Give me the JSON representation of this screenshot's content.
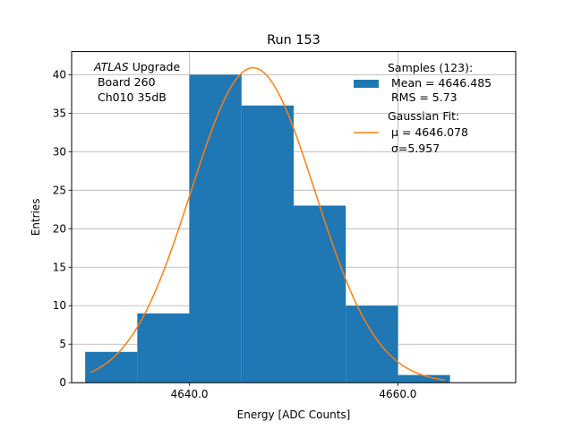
{
  "chart_data": {
    "type": "bar",
    "title": "Run 153",
    "xlabel": "Energy [ADC Counts]",
    "ylabel": "Entries",
    "xlim": [
      2.87,
      7.13
    ],
    "ylim": [
      0,
      43
    ],
    "grid": true,
    "bins": [
      {
        "left": 3,
        "right": 3.5,
        "value": 4
      },
      {
        "left": 3.5,
        "right": 4,
        "value": 9
      },
      {
        "left": 4,
        "right": 4.5,
        "value": 40
      },
      {
        "left": 4.5,
        "right": 5,
        "value": 36
      },
      {
        "left": 5,
        "right": 5.5,
        "value": 23
      },
      {
        "left": 5.5,
        "right": 6,
        "value": 10
      },
      {
        "left": 6,
        "right": 6.5,
        "value": 1
      }
    ],
    "x_ticks": [
      {
        "pos": 4,
        "label": "4640.0"
      },
      {
        "pos": 6,
        "label": "4660.0"
      }
    ],
    "y_ticks": [
      0,
      5,
      10,
      15,
      20,
      25,
      30,
      35,
      40
    ],
    "fit": {
      "amplitude": 40.9,
      "center": 4.61,
      "sigma": 0.5957,
      "x_from": 3.05,
      "x_to": 6.45
    },
    "colors": {
      "bars": "#1f77b4",
      "fit_line": "#ff7f0e",
      "grid": "#b0b0b0"
    },
    "legend_position": "top-right",
    "legend": {
      "samples_title": "Samples (123):",
      "samples_mean": " Mean = 4646.485",
      "samples_rms": " RMS = 5.73",
      "fit_title": "Gaussian Fit:",
      "fit_mu": " μ = 4646.078",
      "fit_sigma": " σ=5.957"
    },
    "annotation": {
      "line1_italic": "ATLAS",
      "line1_rest": " Upgrade",
      "line2": " Board 260",
      "line3": " Ch010 35dB"
    }
  }
}
